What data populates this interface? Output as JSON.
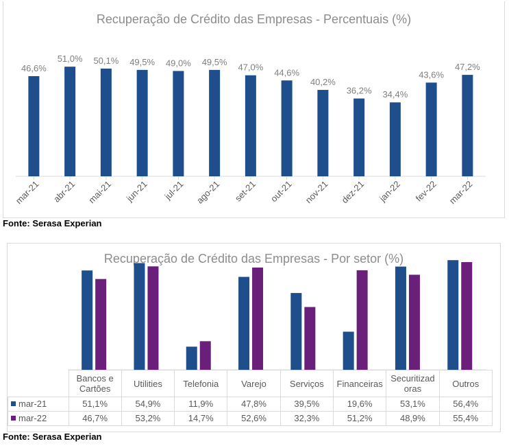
{
  "chart_data": [
    {
      "type": "bar",
      "title": "Recuperação de Crédito das Empresas - Percentuais (%)",
      "categories": [
        "mar-21",
        "abr-21",
        "mai-21",
        "jun-21",
        "jul-21",
        "ago-21",
        "set-21",
        "out-21",
        "nov-21",
        "dez-21",
        "jan-22",
        "fev-22",
        "mar-22"
      ],
      "values": [
        46.6,
        51.0,
        50.1,
        49.5,
        49.0,
        49.5,
        47.0,
        44.6,
        40.2,
        36.2,
        34.4,
        43.6,
        47.2
      ],
      "data_labels": [
        "46,6%",
        "51,0%",
        "50,1%",
        "49,5%",
        "49,0%",
        "49,5%",
        "47,0%",
        "44,6%",
        "40,2%",
        "36,2%",
        "34,4%",
        "43,6%",
        "47,2%"
      ],
      "ylim": [
        0,
        60
      ],
      "color": "#1f4e8c",
      "grid": false
    },
    {
      "type": "bar",
      "title": "Recuperação de Crédito das Empresas - Por setor (%)",
      "categories": [
        "Bancos e Cartões",
        "Utilities",
        "Telefonia",
        "Varejo",
        "Serviços",
        "Financeiras",
        "Securitizadoras",
        "Outros"
      ],
      "category_lines": [
        [
          "Bancos e",
          "Cartões"
        ],
        [
          "Utilities"
        ],
        [
          "Telefonia"
        ],
        [
          "Varejo"
        ],
        [
          "Serviços"
        ],
        [
          "Financeiras"
        ],
        [
          "Securitizad",
          "oras"
        ],
        [
          "Outros"
        ]
      ],
      "series": [
        {
          "name": "mar-21",
          "color": "#1f4e8c",
          "values": [
            51.1,
            54.9,
            11.9,
            47.8,
            39.5,
            19.6,
            53.1,
            56.4
          ],
          "labels": [
            "51,1%",
            "54,9%",
            "11,9%",
            "47,8%",
            "39,5%",
            "19,6%",
            "53,1%",
            "56,4%"
          ]
        },
        {
          "name": "mar-22",
          "color": "#6a1f7a",
          "values": [
            46.7,
            53.2,
            14.7,
            52.6,
            32.3,
            51.2,
            48.9,
            55.4
          ],
          "labels": [
            "46,7%",
            "53,2%",
            "14,7%",
            "52,6%",
            "32,3%",
            "51,2%",
            "48,9%",
            "55,4%"
          ]
        }
      ],
      "ylim": [
        0,
        60
      ],
      "grid": false,
      "legend": "data-table"
    }
  ],
  "sources": [
    "Fonte: Serasa Experian",
    "Fonte: Serasa Experian"
  ]
}
